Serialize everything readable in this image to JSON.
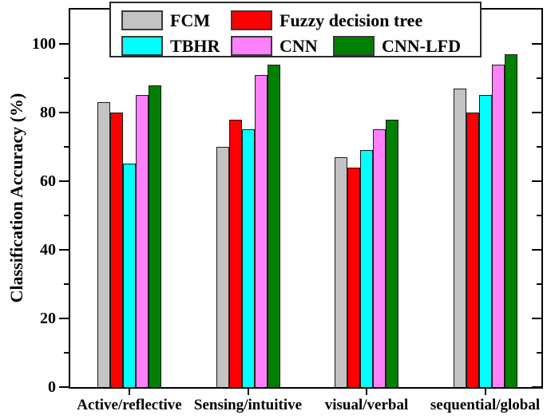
{
  "chart_data": {
    "type": "bar",
    "title": "",
    "xlabel": "",
    "ylabel": "Classification Accuracy (%)",
    "categories": [
      "Active/reflective",
      "Sensing/intuitive",
      "visual/verbal",
      "sequential/global"
    ],
    "series": [
      {
        "name": "FCM",
        "color": "#c3c3c3",
        "values": [
          83,
          70,
          67,
          87
        ]
      },
      {
        "name": "Fuzzy decision tree",
        "color": "#ff0000",
        "values": [
          80,
          78,
          64,
          80
        ]
      },
      {
        "name": "TBHR",
        "color": "#00ffff",
        "values": [
          65,
          75,
          69,
          85
        ]
      },
      {
        "name": "CNN",
        "color": "#ff80ff",
        "values": [
          85,
          91,
          75,
          94
        ]
      },
      {
        "name": "CNN-LFD",
        "color": "#008000",
        "values": [
          88,
          94,
          78,
          97
        ]
      }
    ],
    "y_ticks": [
      0,
      20,
      40,
      60,
      80,
      100
    ],
    "y_minor_ticks": [
      10,
      30,
      50,
      70,
      90
    ],
    "ylim": [
      0,
      110
    ],
    "grid": false,
    "legend_position": "top-center",
    "legend_rows": [
      [
        "FCM",
        "Fuzzy decision tree"
      ],
      [
        "TBHR",
        "CNN",
        "CNN-LFD"
      ]
    ]
  },
  "colors": {
    "axis": "#000000",
    "bar_border": "#1a1a1a",
    "legend_border": "#2a2a2a",
    "background": "#ffffff"
  }
}
